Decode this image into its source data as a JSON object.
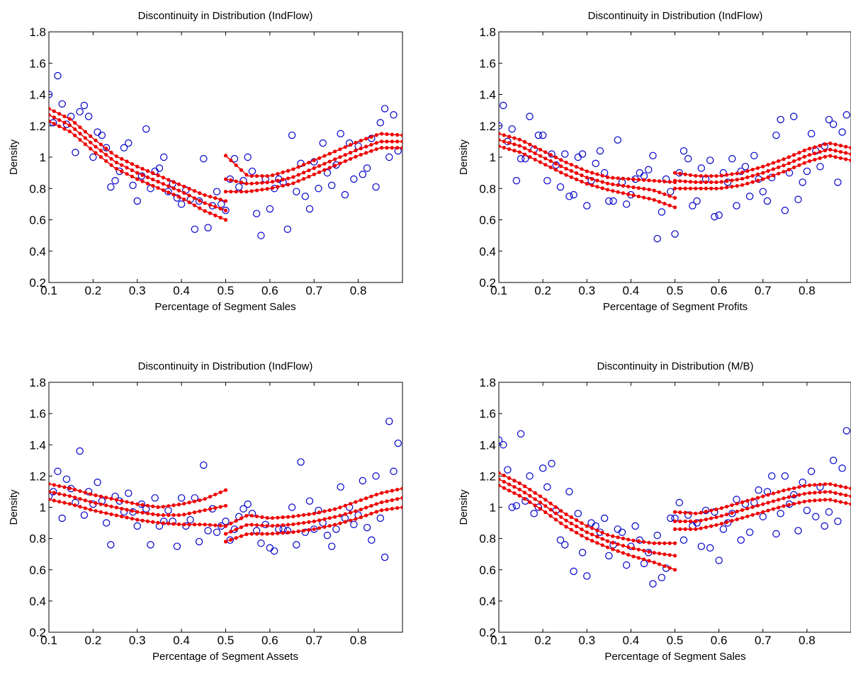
{
  "figure": {
    "background": "#ffffff",
    "scatter_color": "#0000cc",
    "fit_color": "#ee0000"
  },
  "chart_data": [
    {
      "type": "scatter",
      "title": "Discontinuity in Distribution (IndFlow)",
      "xlabel": "Percentage of Segment Sales",
      "ylabel": "Density",
      "xlim": [
        0.1,
        0.9
      ],
      "ylim": [
        0.2,
        1.8
      ],
      "xticks": [
        "0.1",
        "0.2",
        "0.3",
        "0.4",
        "0.5",
        "0.6",
        "0.7",
        "0.8"
      ],
      "yticks": [
        "0.2",
        "0.4",
        "0.6",
        "0.8",
        "1",
        "1.2",
        "1.4",
        "1.6",
        "1.8"
      ],
      "grid": false,
      "cutoff": 0.5,
      "points": {
        "x": [
          0.1,
          0.11,
          0.12,
          0.13,
          0.14,
          0.15,
          0.16,
          0.17,
          0.18,
          0.19,
          0.2,
          0.21,
          0.22,
          0.23,
          0.24,
          0.25,
          0.26,
          0.27,
          0.28,
          0.29,
          0.3,
          0.31,
          0.32,
          0.33,
          0.34,
          0.35,
          0.36,
          0.37,
          0.38,
          0.39,
          0.4,
          0.41,
          0.42,
          0.43,
          0.44,
          0.45,
          0.46,
          0.47,
          0.48,
          0.49,
          0.5,
          0.51,
          0.52,
          0.53,
          0.54,
          0.55,
          0.56,
          0.57,
          0.58,
          0.59,
          0.6,
          0.61,
          0.62,
          0.63,
          0.64,
          0.65,
          0.66,
          0.67,
          0.68,
          0.69,
          0.7,
          0.71,
          0.72,
          0.73,
          0.74,
          0.75,
          0.76,
          0.77,
          0.78,
          0.79,
          0.8,
          0.81,
          0.82,
          0.83,
          0.84,
          0.85,
          0.86,
          0.87,
          0.88,
          0.89
        ],
        "y": [
          1.4,
          1.22,
          1.52,
          1.34,
          1.21,
          1.26,
          1.03,
          1.29,
          1.33,
          1.26,
          1.0,
          1.16,
          1.14,
          1.06,
          0.81,
          0.85,
          0.91,
          1.06,
          1.09,
          0.82,
          0.72,
          0.88,
          1.18,
          0.8,
          0.91,
          0.93,
          1.0,
          0.78,
          0.83,
          0.74,
          0.7,
          0.79,
          0.73,
          0.54,
          0.72,
          0.99,
          0.55,
          0.69,
          0.78,
          0.7,
          0.66,
          0.86,
          0.99,
          0.81,
          0.85,
          1.0,
          0.91,
          0.64,
          0.5,
          0.86,
          0.67,
          0.8,
          0.86,
          0.84,
          0.54,
          1.14,
          0.78,
          0.96,
          0.75,
          0.67,
          0.97,
          0.8,
          1.09,
          0.9,
          0.82,
          0.95,
          1.15,
          0.76,
          1.09,
          0.86,
          1.07,
          0.89,
          0.93,
          1.12,
          0.81,
          1.22,
          1.31,
          1.0,
          1.27,
          1.04
        ]
      },
      "fit": {
        "left": {
          "x": [
            0.1,
            0.15,
            0.2,
            0.25,
            0.3,
            0.35,
            0.4,
            0.45,
            0.5
          ],
          "y": [
            1.27,
            1.2,
            1.08,
            0.97,
            0.9,
            0.84,
            0.78,
            0.71,
            0.66
          ],
          "upper": [
            1.31,
            1.24,
            1.12,
            1.01,
            0.94,
            0.88,
            0.82,
            0.76,
            0.72
          ],
          "lower": [
            1.23,
            1.16,
            1.04,
            0.93,
            0.86,
            0.8,
            0.74,
            0.66,
            0.6
          ]
        },
        "right": {
          "x": [
            0.5,
            0.55,
            0.6,
            0.65,
            0.7,
            0.75,
            0.8,
            0.85,
            0.9
          ],
          "y": [
            0.86,
            0.83,
            0.84,
            0.87,
            0.93,
            0.99,
            1.05,
            1.1,
            1.1
          ],
          "upper": [
            1.01,
            0.88,
            0.88,
            0.92,
            0.98,
            1.04,
            1.1,
            1.15,
            1.14
          ],
          "lower": [
            0.78,
            0.78,
            0.8,
            0.83,
            0.89,
            0.95,
            1.01,
            1.06,
            1.06
          ]
        }
      }
    },
    {
      "type": "scatter",
      "title": "Discontinuity in Distribution (IndFlow)",
      "xlabel": "Percentage of Segment Profits",
      "ylabel": "Density",
      "xlim": [
        0.1,
        0.9
      ],
      "ylim": [
        0.2,
        1.8
      ],
      "xticks": [
        "0.1",
        "0.2",
        "0.3",
        "0.4",
        "0.5",
        "0.6",
        "0.7",
        "0.8"
      ],
      "yticks": [
        "0.2",
        "0.4",
        "0.6",
        "0.8",
        "1",
        "1.2",
        "1.4",
        "1.6",
        "1.8"
      ],
      "grid": false,
      "cutoff": 0.5,
      "points": {
        "x": [
          0.1,
          0.11,
          0.12,
          0.13,
          0.14,
          0.15,
          0.16,
          0.17,
          0.18,
          0.19,
          0.2,
          0.21,
          0.22,
          0.23,
          0.24,
          0.25,
          0.26,
          0.27,
          0.28,
          0.29,
          0.3,
          0.31,
          0.32,
          0.33,
          0.34,
          0.35,
          0.36,
          0.37,
          0.38,
          0.39,
          0.4,
          0.41,
          0.42,
          0.43,
          0.44,
          0.45,
          0.46,
          0.47,
          0.48,
          0.49,
          0.5,
          0.51,
          0.52,
          0.53,
          0.54,
          0.55,
          0.56,
          0.57,
          0.58,
          0.59,
          0.6,
          0.61,
          0.62,
          0.63,
          0.64,
          0.65,
          0.66,
          0.67,
          0.68,
          0.69,
          0.7,
          0.71,
          0.72,
          0.73,
          0.74,
          0.75,
          0.76,
          0.77,
          0.78,
          0.79,
          0.8,
          0.81,
          0.82,
          0.83,
          0.84,
          0.85,
          0.86,
          0.87,
          0.88,
          0.89
        ],
        "y": [
          1.2,
          1.33,
          1.1,
          1.18,
          0.85,
          0.99,
          0.99,
          1.26,
          1.05,
          1.14,
          1.14,
          0.85,
          1.02,
          0.95,
          0.81,
          1.02,
          0.75,
          0.76,
          1.0,
          1.02,
          0.69,
          0.85,
          0.96,
          1.04,
          0.9,
          0.72,
          0.72,
          1.11,
          0.84,
          0.7,
          0.76,
          0.86,
          0.9,
          0.88,
          0.92,
          1.01,
          0.48,
          0.65,
          0.86,
          0.78,
          0.51,
          0.9,
          1.04,
          0.99,
          0.69,
          0.72,
          0.93,
          0.86,
          0.98,
          0.62,
          0.63,
          0.9,
          0.84,
          0.99,
          0.69,
          0.91,
          0.94,
          0.75,
          1.01,
          0.86,
          0.78,
          0.72,
          0.87,
          1.14,
          1.24,
          0.66,
          0.9,
          1.26,
          0.73,
          0.84,
          0.91,
          1.15,
          1.04,
          0.94,
          1.07,
          1.24,
          1.21,
          0.84,
          1.16,
          1.27
        ]
      },
      "fit": {
        "left": {
          "x": [
            0.1,
            0.15,
            0.2,
            0.25,
            0.3,
            0.35,
            0.4,
            0.45,
            0.5
          ],
          "y": [
            1.11,
            1.07,
            1.0,
            0.93,
            0.87,
            0.83,
            0.81,
            0.79,
            0.74
          ],
          "upper": [
            1.15,
            1.11,
            1.04,
            0.97,
            0.91,
            0.87,
            0.86,
            0.85,
            0.84
          ],
          "lower": [
            1.07,
            1.03,
            0.96,
            0.89,
            0.83,
            0.79,
            0.76,
            0.73,
            0.68
          ]
        },
        "right": {
          "x": [
            0.5,
            0.55,
            0.6,
            0.65,
            0.7,
            0.75,
            0.8,
            0.85,
            0.9
          ],
          "y": [
            0.85,
            0.84,
            0.84,
            0.86,
            0.9,
            0.95,
            1.01,
            1.05,
            1.02
          ],
          "upper": [
            0.9,
            0.88,
            0.88,
            0.9,
            0.94,
            0.99,
            1.05,
            1.09,
            1.06
          ],
          "lower": [
            0.8,
            0.8,
            0.8,
            0.82,
            0.86,
            0.91,
            0.97,
            1.01,
            0.98
          ]
        }
      }
    },
    {
      "type": "scatter",
      "title": "Discontinuity in Distribution (IndFlow)",
      "xlabel": "Percentage of Segment Assets",
      "ylabel": "Density",
      "xlim": [
        0.1,
        0.9
      ],
      "ylim": [
        0.2,
        1.8
      ],
      "xticks": [
        "0.1",
        "0.2",
        "0.3",
        "0.4",
        "0.5",
        "0.6",
        "0.7",
        "0.8"
      ],
      "yticks": [
        "0.2",
        "0.4",
        "0.6",
        "0.8",
        "1",
        "1.2",
        "1.4",
        "1.6",
        "1.8"
      ],
      "grid": false,
      "cutoff": 0.5,
      "points": {
        "x": [
          0.1,
          0.11,
          0.12,
          0.13,
          0.14,
          0.15,
          0.16,
          0.17,
          0.18,
          0.19,
          0.2,
          0.21,
          0.22,
          0.23,
          0.24,
          0.25,
          0.26,
          0.27,
          0.28,
          0.29,
          0.3,
          0.31,
          0.32,
          0.33,
          0.34,
          0.35,
          0.36,
          0.37,
          0.38,
          0.39,
          0.4,
          0.41,
          0.42,
          0.43,
          0.44,
          0.45,
          0.46,
          0.47,
          0.48,
          0.49,
          0.5,
          0.51,
          0.52,
          0.53,
          0.54,
          0.55,
          0.56,
          0.57,
          0.58,
          0.59,
          0.6,
          0.61,
          0.62,
          0.63,
          0.64,
          0.65,
          0.66,
          0.67,
          0.68,
          0.69,
          0.7,
          0.71,
          0.72,
          0.73,
          0.74,
          0.75,
          0.76,
          0.77,
          0.78,
          0.79,
          0.8,
          0.81,
          0.82,
          0.83,
          0.84,
          0.85,
          0.86,
          0.87,
          0.88,
          0.89
        ],
        "y": [
          1.07,
          1.1,
          1.23,
          0.93,
          1.18,
          1.12,
          1.03,
          1.36,
          0.95,
          1.1,
          1.02,
          1.16,
          1.04,
          0.9,
          0.76,
          1.07,
          1.04,
          0.97,
          1.09,
          0.97,
          0.88,
          1.02,
          0.99,
          0.76,
          1.06,
          0.88,
          0.91,
          0.98,
          0.91,
          0.75,
          1.06,
          0.88,
          0.92,
          1.06,
          0.78,
          1.27,
          0.85,
          0.99,
          0.84,
          0.88,
          0.91,
          0.79,
          0.86,
          0.94,
          0.99,
          1.02,
          0.96,
          0.85,
          0.77,
          0.89,
          0.74,
          0.72,
          0.86,
          0.86,
          0.85,
          1.0,
          0.76,
          1.29,
          0.84,
          1.04,
          0.86,
          0.98,
          0.9,
          0.82,
          0.75,
          0.86,
          1.13,
          0.93,
          1.0,
          0.89,
          0.95,
          1.17,
          0.87,
          0.79,
          1.2,
          0.93,
          0.68,
          1.55,
          1.23,
          1.41
        ]
      },
      "fit": {
        "left": {
          "x": [
            0.1,
            0.15,
            0.2,
            0.25,
            0.3,
            0.35,
            0.4,
            0.45,
            0.5
          ],
          "y": [
            1.1,
            1.07,
            1.03,
            1.0,
            0.97,
            0.95,
            0.95,
            0.98,
            1.01
          ],
          "upper": [
            1.15,
            1.12,
            1.08,
            1.05,
            1.02,
            1.0,
            1.02,
            1.05,
            1.11
          ],
          "lower": [
            1.05,
            1.02,
            0.98,
            0.95,
            0.92,
            0.9,
            0.89,
            0.89,
            0.88
          ]
        },
        "right": {
          "x": [
            0.5,
            0.55,
            0.6,
            0.65,
            0.7,
            0.75,
            0.8,
            0.85,
            0.9
          ],
          "y": [
            0.83,
            0.89,
            0.88,
            0.89,
            0.91,
            0.94,
            0.98,
            1.03,
            1.06
          ],
          "upper": [
            0.88,
            0.95,
            0.93,
            0.94,
            0.96,
            0.99,
            1.04,
            1.09,
            1.12
          ],
          "lower": [
            0.78,
            0.83,
            0.83,
            0.84,
            0.86,
            0.89,
            0.93,
            0.98,
            1.0
          ]
        }
      }
    },
    {
      "type": "scatter",
      "title": "Discontinuity in Distribution (M/B)",
      "xlabel": "Percentage of Segment Sales",
      "ylabel": "Density",
      "xlim": [
        0.1,
        0.9
      ],
      "ylim": [
        0.2,
        1.8
      ],
      "xticks": [
        "0.1",
        "0.2",
        "0.3",
        "0.4",
        "0.5",
        "0.6",
        "0.7",
        "0.8"
      ],
      "yticks": [
        "0.2",
        "0.4",
        "0.6",
        "0.8",
        "1",
        "1.2",
        "1.4",
        "1.6",
        "1.8"
      ],
      "grid": false,
      "cutoff": 0.5,
      "points": {
        "x": [
          0.1,
          0.11,
          0.12,
          0.13,
          0.14,
          0.15,
          0.16,
          0.17,
          0.18,
          0.19,
          0.2,
          0.21,
          0.22,
          0.23,
          0.24,
          0.25,
          0.26,
          0.27,
          0.28,
          0.29,
          0.3,
          0.31,
          0.32,
          0.33,
          0.34,
          0.35,
          0.36,
          0.37,
          0.38,
          0.39,
          0.4,
          0.41,
          0.42,
          0.43,
          0.44,
          0.45,
          0.46,
          0.47,
          0.48,
          0.49,
          0.5,
          0.51,
          0.52,
          0.53,
          0.54,
          0.55,
          0.56,
          0.57,
          0.58,
          0.59,
          0.6,
          0.61,
          0.62,
          0.63,
          0.64,
          0.65,
          0.66,
          0.67,
          0.68,
          0.69,
          0.7,
          0.71,
          0.72,
          0.73,
          0.74,
          0.75,
          0.76,
          0.77,
          0.78,
          0.79,
          0.8,
          0.81,
          0.82,
          0.83,
          0.84,
          0.85,
          0.86,
          0.87,
          0.88,
          0.89
        ],
        "y": [
          1.43,
          1.4,
          1.24,
          1.0,
          1.01,
          1.47,
          1.04,
          1.2,
          0.96,
          1.0,
          1.25,
          1.13,
          1.28,
          0.98,
          0.79,
          0.76,
          1.1,
          0.59,
          0.96,
          0.71,
          0.56,
          0.9,
          0.88,
          0.84,
          0.93,
          0.69,
          0.76,
          0.86,
          0.84,
          0.63,
          0.75,
          0.88,
          0.79,
          0.64,
          0.71,
          0.51,
          0.82,
          0.55,
          0.61,
          0.93,
          0.93,
          1.03,
          0.79,
          0.95,
          0.88,
          0.9,
          0.75,
          0.98,
          0.74,
          0.97,
          0.66,
          0.86,
          0.9,
          0.96,
          1.05,
          0.79,
          1.02,
          0.84,
          1.03,
          1.11,
          0.94,
          1.1,
          1.2,
          0.83,
          0.96,
          1.2,
          1.02,
          1.08,
          0.85,
          1.16,
          0.98,
          1.23,
          0.94,
          1.13,
          0.88,
          0.97,
          1.3,
          0.91,
          1.25,
          1.49
        ]
      },
      "fit": {
        "left": {
          "x": [
            0.1,
            0.15,
            0.2,
            0.25,
            0.3,
            0.35,
            0.4,
            0.45,
            0.5
          ],
          "y": [
            1.18,
            1.11,
            1.02,
            0.92,
            0.84,
            0.78,
            0.74,
            0.71,
            0.69
          ],
          "upper": [
            1.22,
            1.15,
            1.06,
            0.96,
            0.88,
            0.82,
            0.79,
            0.77,
            0.77
          ],
          "lower": [
            1.14,
            1.07,
            0.98,
            0.88,
            0.8,
            0.74,
            0.69,
            0.65,
            0.6
          ]
        },
        "right": {
          "x": [
            0.5,
            0.55,
            0.6,
            0.65,
            0.7,
            0.75,
            0.8,
            0.85,
            0.9
          ],
          "y": [
            0.91,
            0.91,
            0.94,
            0.98,
            1.02,
            1.06,
            1.09,
            1.1,
            1.07
          ],
          "upper": [
            0.97,
            0.96,
            0.99,
            1.03,
            1.07,
            1.11,
            1.14,
            1.15,
            1.12
          ],
          "lower": [
            0.86,
            0.86,
            0.89,
            0.93,
            0.97,
            1.01,
            1.04,
            1.05,
            1.02
          ]
        }
      }
    }
  ]
}
